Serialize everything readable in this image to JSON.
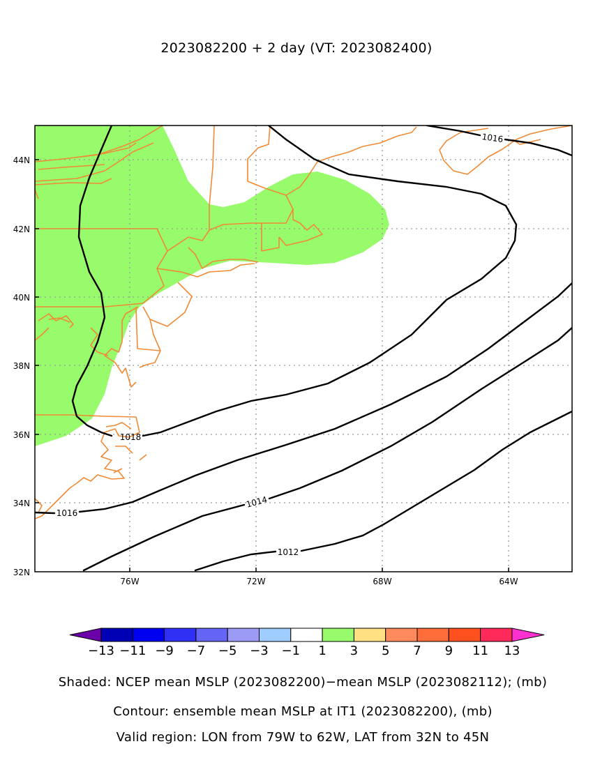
{
  "title": "2023082200 + 2 day (VT: 2023082400)",
  "axes": {
    "lat_labels": [
      "44N",
      "42N",
      "40N",
      "38N",
      "36N",
      "34N",
      "32N"
    ],
    "lon_labels": [
      "76W",
      "72W",
      "68W",
      "64W"
    ]
  },
  "contour_labels": {
    "c1016_top": "1016",
    "c1018": "1018",
    "c1016_left": "1016",
    "c1014": "1014",
    "c1012": "1012"
  },
  "colorbar": {
    "colors": [
      "#6b00a8",
      "#0000b4",
      "#0000f0",
      "#3030f5",
      "#6464f5",
      "#9b9bf5",
      "#a0cdff",
      "#ffffff",
      "#98fb6c",
      "#ffe082",
      "#ff8a5b",
      "#ff6d3a",
      "#ff5020",
      "#ff2a5a",
      "#ff30d0"
    ],
    "tick_labels": [
      "-13",
      "-11",
      "-9",
      "-7",
      "-5",
      "-3",
      "-1",
      "1",
      "3",
      "5",
      "7",
      "9",
      "11",
      "13"
    ]
  },
  "captions": {
    "line1": "Shaded: NCEP mean MSLP (2023082200)−mean MSLP (2023082112); (mb)",
    "line2": "Contour: ensemble mean MSLP at IT1 (2023082200), (mb)",
    "line3": "Valid region: LON from 79W to 62W, LAT from 32N to 45N"
  },
  "colors": {
    "shade_positive": "#98fb6c",
    "coastline": "#f08a35",
    "contour": "#000000"
  }
}
